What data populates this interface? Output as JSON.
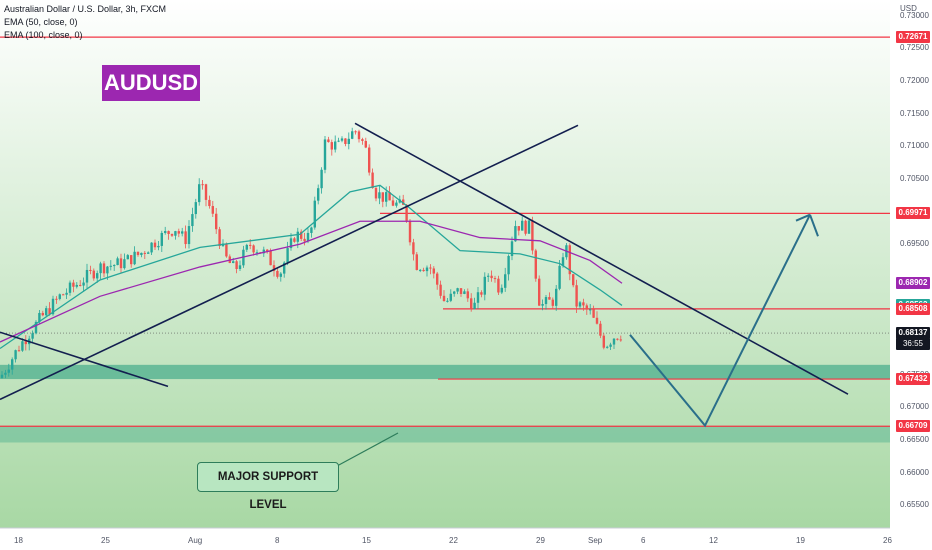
{
  "legend": {
    "symbol_line": "Australian Dollar / U.S. Dollar, 3h, FXCM",
    "ema50": "EMA (50, close, 0)",
    "ema100": "EMA (100, close, 0)"
  },
  "title_badge": "AUDUSD",
  "callout": "MAJOR SUPPORT LEVEL",
  "currency": "USD",
  "price_axis": {
    "ticks": [
      "0.73000",
      "0.72500",
      "0.72000",
      "0.71500",
      "0.71000",
      "0.70500",
      "0.69500",
      "0.68000",
      "0.67500",
      "0.67000",
      "0.66500",
      "0.66000",
      "0.65500"
    ]
  },
  "price_tags": [
    {
      "value": "0.72671",
      "color": "#f23645",
      "y": 0.72671
    },
    {
      "value": "0.69971",
      "color": "#f23645",
      "y": 0.69971
    },
    {
      "value": "0.68902",
      "color": "#9c27b0",
      "y": 0.68902
    },
    {
      "value": "0.68562",
      "color": "#26a69a",
      "y": 0.68562
    },
    {
      "value": "0.68508",
      "color": "#f23645",
      "y": 0.68508
    },
    {
      "value": "0.68137",
      "color": "#131722",
      "y": 0.68137
    },
    {
      "value": "0.67432",
      "color": "#f23645",
      "y": 0.67432
    },
    {
      "value": "0.66709",
      "color": "#f23645",
      "y": 0.66709
    }
  ],
  "countdown": "36:55",
  "time_axis": {
    "ticks": [
      "18",
      "25",
      "Aug",
      "8",
      "15",
      "22",
      "29",
      "Sep",
      "6",
      "12",
      "19",
      "26"
    ]
  },
  "colors": {
    "background_top": "#ffffff",
    "background_bottom": "#a8d8a4",
    "up_candle": "#26a69a",
    "down_candle": "#ef5350",
    "ema50": "#26a69a",
    "ema100": "#9c27b0",
    "resistance": "#f23645",
    "trendline": "#131f4f",
    "projection": "#2a6f8a",
    "support_zone": "#4caf8e"
  },
  "chart_data": {
    "type": "line",
    "symbol": "AUDUSD",
    "timeframe": "3h",
    "ylim": [
      0.6515,
      0.7324
    ],
    "close_path": [
      [
        0,
        0.6745
      ],
      [
        20,
        0.6795
      ],
      [
        40,
        0.6835
      ],
      [
        60,
        0.687
      ],
      [
        80,
        0.6892
      ],
      [
        100,
        0.6915
      ],
      [
        120,
        0.692
      ],
      [
        140,
        0.6935
      ],
      [
        160,
        0.696
      ],
      [
        175,
        0.6975
      ],
      [
        185,
        0.6955
      ],
      [
        200,
        0.704
      ],
      [
        210,
        0.7005
      ],
      [
        225,
        0.693
      ],
      [
        235,
        0.691
      ],
      [
        250,
        0.695
      ],
      [
        265,
        0.6935
      ],
      [
        280,
        0.6905
      ],
      [
        295,
        0.6965
      ],
      [
        310,
        0.696
      ],
      [
        325,
        0.7105
      ],
      [
        340,
        0.71
      ],
      [
        355,
        0.7125
      ],
      [
        365,
        0.71
      ],
      [
        375,
        0.703
      ],
      [
        390,
        0.7015
      ],
      [
        405,
        0.7005
      ],
      [
        415,
        0.692
      ],
      [
        430,
        0.6915
      ],
      [
        445,
        0.686
      ],
      [
        460,
        0.688
      ],
      [
        475,
        0.6855
      ],
      [
        490,
        0.691
      ],
      [
        500,
        0.688
      ],
      [
        515,
        0.698
      ],
      [
        530,
        0.6975
      ],
      [
        540,
        0.6855
      ],
      [
        555,
        0.6865
      ],
      [
        565,
        0.6955
      ],
      [
        575,
        0.686
      ],
      [
        590,
        0.6845
      ],
      [
        605,
        0.6795
      ],
      [
        615,
        0.681
      ],
      [
        622,
        0.6813
      ]
    ],
    "ema50": [
      [
        0,
        0.679
      ],
      [
        100,
        0.6895
      ],
      [
        200,
        0.6945
      ],
      [
        300,
        0.6965
      ],
      [
        350,
        0.703
      ],
      [
        380,
        0.704
      ],
      [
        410,
        0.7005
      ],
      [
        460,
        0.694
      ],
      [
        520,
        0.6935
      ],
      [
        560,
        0.692
      ],
      [
        600,
        0.688
      ],
      [
        622,
        0.6856
      ]
    ],
    "ema100": [
      [
        0,
        0.68
      ],
      [
        100,
        0.687
      ],
      [
        200,
        0.6915
      ],
      [
        300,
        0.695
      ],
      [
        360,
        0.6985
      ],
      [
        420,
        0.6985
      ],
      [
        480,
        0.696
      ],
      [
        540,
        0.6955
      ],
      [
        590,
        0.6925
      ],
      [
        622,
        0.689
      ]
    ],
    "trendlines": [
      {
        "from": [
          0,
          0.6712
        ],
        "to": [
          578,
          0.7132
        ]
      },
      {
        "from": [
          355,
          0.7135
        ],
        "to": [
          848,
          0.672
        ]
      },
      {
        "from": [
          0,
          0.6815
        ],
        "to": [
          168,
          0.6732
        ]
      }
    ],
    "horizontal_levels": [
      0.72671,
      0.69971,
      0.68508,
      0.67432,
      0.66709
    ],
    "support_zone": {
      "from": 0.67432,
      "to": 0.6765
    },
    "major_support_zone": {
      "from": 0.6646,
      "to": 0.66709
    },
    "projection": [
      [
        630,
        0.6811
      ],
      [
        705,
        0.6672
      ],
      [
        810,
        0.6995
      ],
      [
        818,
        0.6962
      ]
    ]
  }
}
